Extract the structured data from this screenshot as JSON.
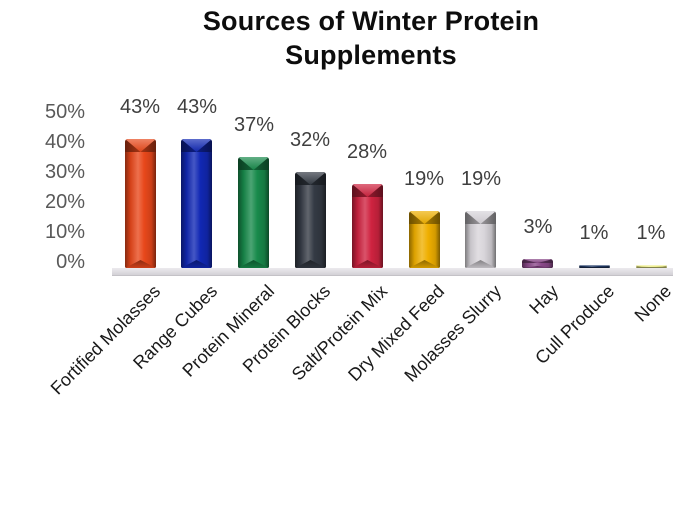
{
  "title": "Sources of Winter Protein Supplements",
  "chart_data": {
    "type": "bar",
    "title": "Sources of Winter Protein Supplements",
    "categories": [
      "Fortified Molasses",
      "Range Cubes",
      "Protein Mineral",
      "Protein Blocks",
      "Salt/Protein Mix",
      "Dry Mixed Feed",
      "Molasses Slurry",
      "Hay",
      "Cull Produce",
      "None"
    ],
    "values": [
      43,
      43,
      37,
      32,
      28,
      19,
      19,
      3,
      1,
      1
    ],
    "data_labels": [
      "43%",
      "43%",
      "37%",
      "32%",
      "28%",
      "19%",
      "19%",
      "3%",
      "1%",
      "1%"
    ],
    "bar_colors": [
      "#E8481B",
      "#1128B4",
      "#188A4B",
      "#343A44",
      "#CF2340",
      "#EFAF00",
      "#D8D5DA",
      "#8B4A8A",
      "#203864",
      "#EFEF8C"
    ],
    "xlabel": "",
    "ylabel": "",
    "y_axis": {
      "ticks": [
        "0%",
        "10%",
        "20%",
        "30%",
        "40%",
        "50%"
      ],
      "min": 0,
      "max": 50,
      "unit": "%"
    },
    "legend": "none",
    "grid": false,
    "bar_style": "3d-bevel",
    "colors": {
      "title_text": "#0D0D0D",
      "data_label_text": "#3F3F3F",
      "axis_tick_text": "#595959",
      "category_text": "#1A1A1A",
      "floor": "#D9D7DB",
      "background": "#FFFFFF"
    }
  }
}
